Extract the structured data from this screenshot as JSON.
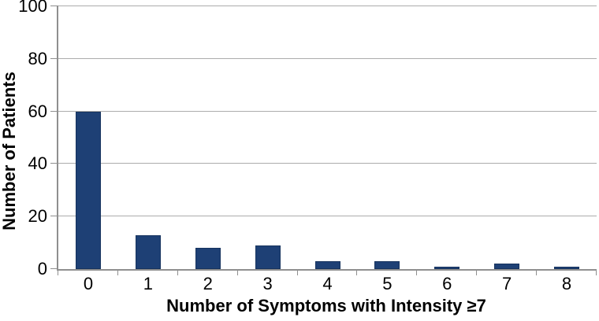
{
  "chart_data": {
    "type": "bar",
    "title": "",
    "xlabel": "Number of Symptoms with Intensity ≥7",
    "ylabel": "Number of Patients",
    "categories": [
      "0",
      "1",
      "2",
      "3",
      "4",
      "5",
      "6",
      "7",
      "8"
    ],
    "values": [
      60,
      13,
      8,
      9,
      3,
      3,
      1,
      2,
      1
    ],
    "ylim": [
      0,
      100
    ],
    "yticks": [
      0,
      20,
      40,
      60,
      80,
      100
    ],
    "grid": "horizontal-gridlines-on",
    "legend": "none",
    "colors": {
      "bar_fill": "#1E4075",
      "bar_edge": "#16335E",
      "gridline": "#ACACAC",
      "axis_line": "#8F8F8F",
      "text": "#000000",
      "background": "#FFFFFF"
    }
  }
}
